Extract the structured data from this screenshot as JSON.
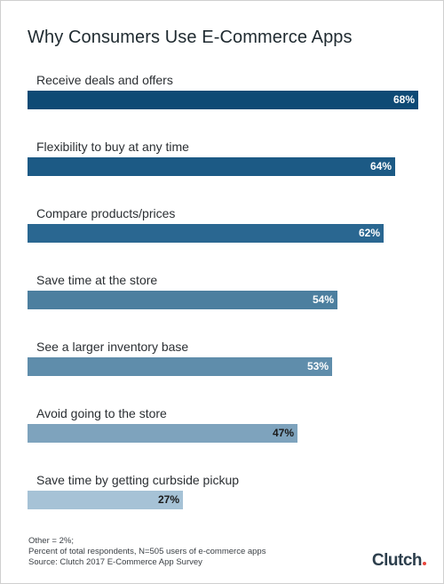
{
  "colors": {
    "bar_palette": [
      "#0e4a75",
      "#1c5a85",
      "#2a6791",
      "#4c7f9f",
      "#5f8dab",
      "#7ea3bd",
      "#a6c2d6"
    ],
    "label_light": "#ffffff",
    "label_dark": "#1a1a1a",
    "logo_dot": "#e8453c"
  },
  "chart_data": {
    "type": "bar",
    "orientation": "horizontal",
    "title": "Why Consumers Use E-Commerce Apps",
    "categories": [
      "Receive deals and offers",
      "Flexibility to buy at any time",
      "Compare products/prices",
      "Save time at the store",
      "See a larger inventory base",
      "Avoid going to the store",
      "Save time by getting curbside pickup"
    ],
    "values": [
      68,
      64,
      62,
      54,
      53,
      47,
      27
    ],
    "value_labels": [
      "68%",
      "64%",
      "62%",
      "54%",
      "53%",
      "47%",
      "27%"
    ],
    "unit": "%",
    "xlim": [
      0,
      68
    ],
    "grid": false,
    "legend": "none"
  },
  "footnotes": {
    "line1": "Other = 2%;",
    "line2": "Percent of total respondents, N=505 users of e-commerce apps",
    "line3": "Source: Clutch 2017 E-Commerce App Survey"
  },
  "brand": {
    "name": "Clutch"
  }
}
